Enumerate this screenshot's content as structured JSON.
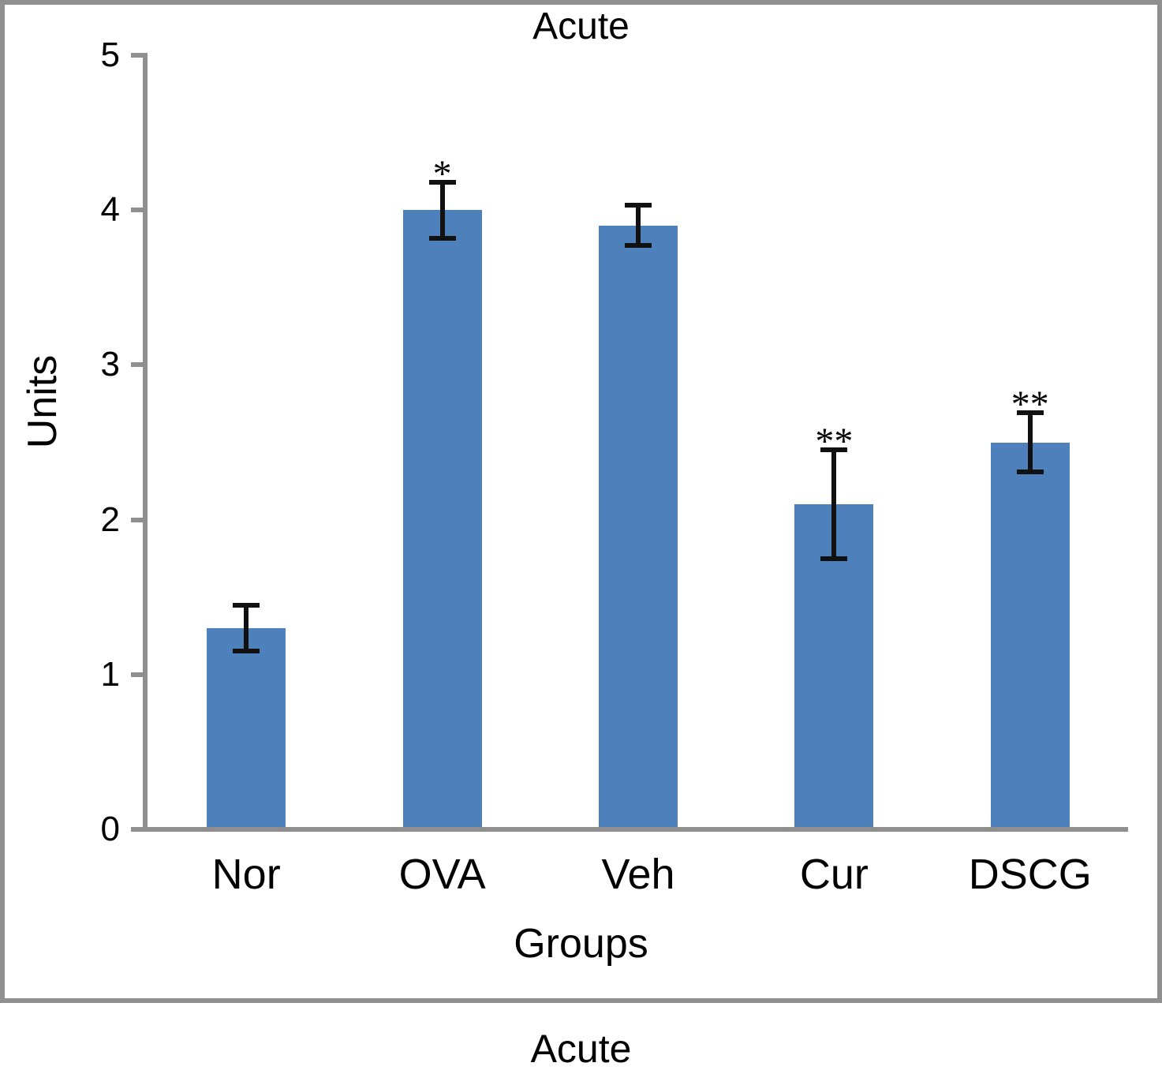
{
  "figure": {
    "caption": "Acute"
  },
  "chart_data": {
    "type": "bar",
    "title": "Acute",
    "xlabel": "Groups",
    "ylabel": "Units",
    "ylim": [
      0,
      5
    ],
    "yticks": [
      0,
      1,
      2,
      3,
      4,
      5
    ],
    "categories": [
      "Nor",
      "OVA",
      "Veh",
      "Cur",
      "DSCG"
    ],
    "values": [
      1.3,
      4.0,
      3.9,
      2.1,
      2.5
    ],
    "errors": [
      0.15,
      0.18,
      0.13,
      0.35,
      0.19
    ],
    "significance": [
      "",
      "*",
      "",
      "**",
      "**"
    ],
    "bar_color": "#4e80bc",
    "axis_color": "#8f8f8f",
    "error_bar_color": "#111111",
    "grid": false,
    "legend": false
  }
}
